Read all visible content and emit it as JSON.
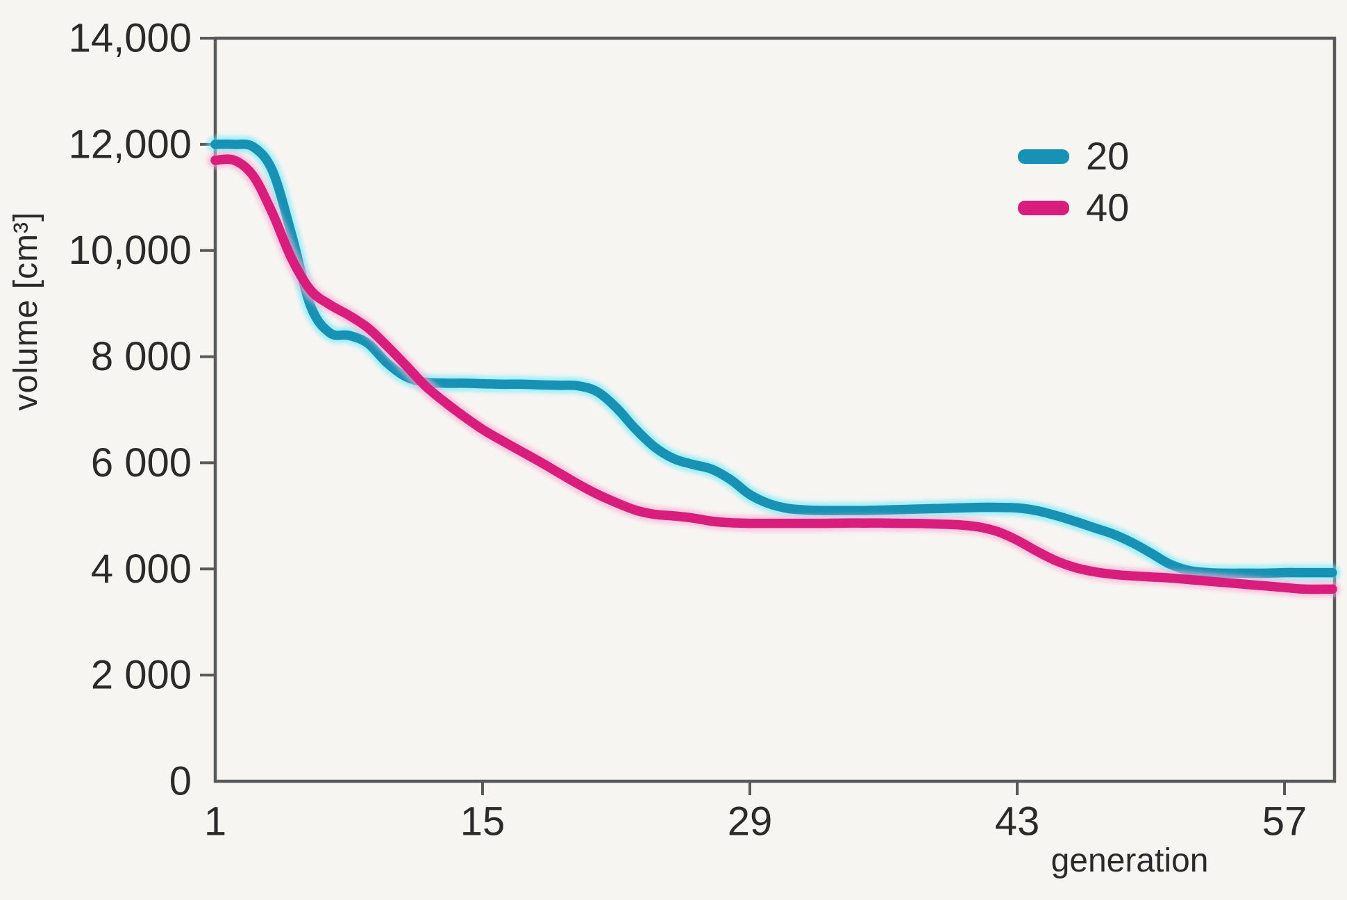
{
  "figure": {
    "background": "#F7F5F2",
    "frame_color": "#58595B",
    "text_color": "#2A2A2A"
  },
  "chart_data": {
    "type": "line",
    "title": "",
    "xlabel": "generation",
    "ylabel": "volume [cm³]",
    "ylim": [
      0,
      14000
    ],
    "xlim": [
      1,
      59.6
    ],
    "grid": false,
    "legend_position": "upper-right",
    "x_ticks": [
      {
        "value": 1,
        "label": "1"
      },
      {
        "value": 15,
        "label": "15"
      },
      {
        "value": 29,
        "label": "29"
      },
      {
        "value": 43,
        "label": "43"
      },
      {
        "value": 57,
        "label": "57"
      }
    ],
    "y_ticks": [
      {
        "value": 14000,
        "label": "14,000"
      },
      {
        "value": 12000,
        "label": "12,000"
      },
      {
        "value": 10000,
        "label": "10,000"
      },
      {
        "value": 8000,
        "label": "8 000"
      },
      {
        "value": 6000,
        "label": "6 000"
      },
      {
        "value": 4000,
        "label": "4 000"
      },
      {
        "value": 2000,
        "label": "2 000"
      },
      {
        "value": 0,
        "label": "0"
      }
    ],
    "x": [
      1,
      2,
      3,
      4,
      5,
      6,
      7,
      8,
      9,
      10,
      11,
      12,
      13,
      14,
      15,
      16,
      17,
      18,
      19,
      20,
      21,
      22,
      23,
      24,
      25,
      26,
      27,
      28,
      29,
      30,
      31,
      32,
      33,
      34,
      35,
      36,
      37,
      38,
      39,
      40,
      41,
      42,
      43,
      44,
      45,
      46,
      47,
      48,
      49,
      50,
      51,
      52,
      53,
      54,
      55,
      56,
      57,
      58
    ],
    "series": [
      {
        "name": "20",
        "color": "#1792B4",
        "halo_color": "#6EEBFC",
        "values": [
          12000,
          12000,
          11950,
          11500,
          10300,
          8950,
          8450,
          8400,
          8250,
          7880,
          7620,
          7520,
          7500,
          7500,
          7490,
          7480,
          7480,
          7470,
          7460,
          7450,
          7340,
          7040,
          6640,
          6300,
          6080,
          5970,
          5880,
          5680,
          5400,
          5230,
          5140,
          5110,
          5100,
          5100,
          5100,
          5110,
          5120,
          5130,
          5140,
          5150,
          5160,
          5160,
          5150,
          5100,
          5010,
          4900,
          4780,
          4660,
          4500,
          4300,
          4090,
          3970,
          3930,
          3920,
          3920,
          3920,
          3930,
          3930
        ]
      },
      {
        "name": "40",
        "color": "#D81D7C",
        "halo_color": "#F9ADD2",
        "values": [
          11700,
          11700,
          11400,
          10700,
          9850,
          9250,
          8980,
          8780,
          8540,
          8200,
          7830,
          7450,
          7150,
          6880,
          6630,
          6420,
          6220,
          6020,
          5810,
          5600,
          5410,
          5250,
          5110,
          5030,
          5000,
          4960,
          4900,
          4870,
          4860,
          4860,
          4860,
          4860,
          4860,
          4865,
          4865,
          4865,
          4860,
          4855,
          4845,
          4830,
          4790,
          4700,
          4540,
          4340,
          4160,
          4030,
          3950,
          3900,
          3870,
          3850,
          3830,
          3800,
          3770,
          3740,
          3710,
          3680,
          3650,
          3620
        ]
      }
    ]
  }
}
